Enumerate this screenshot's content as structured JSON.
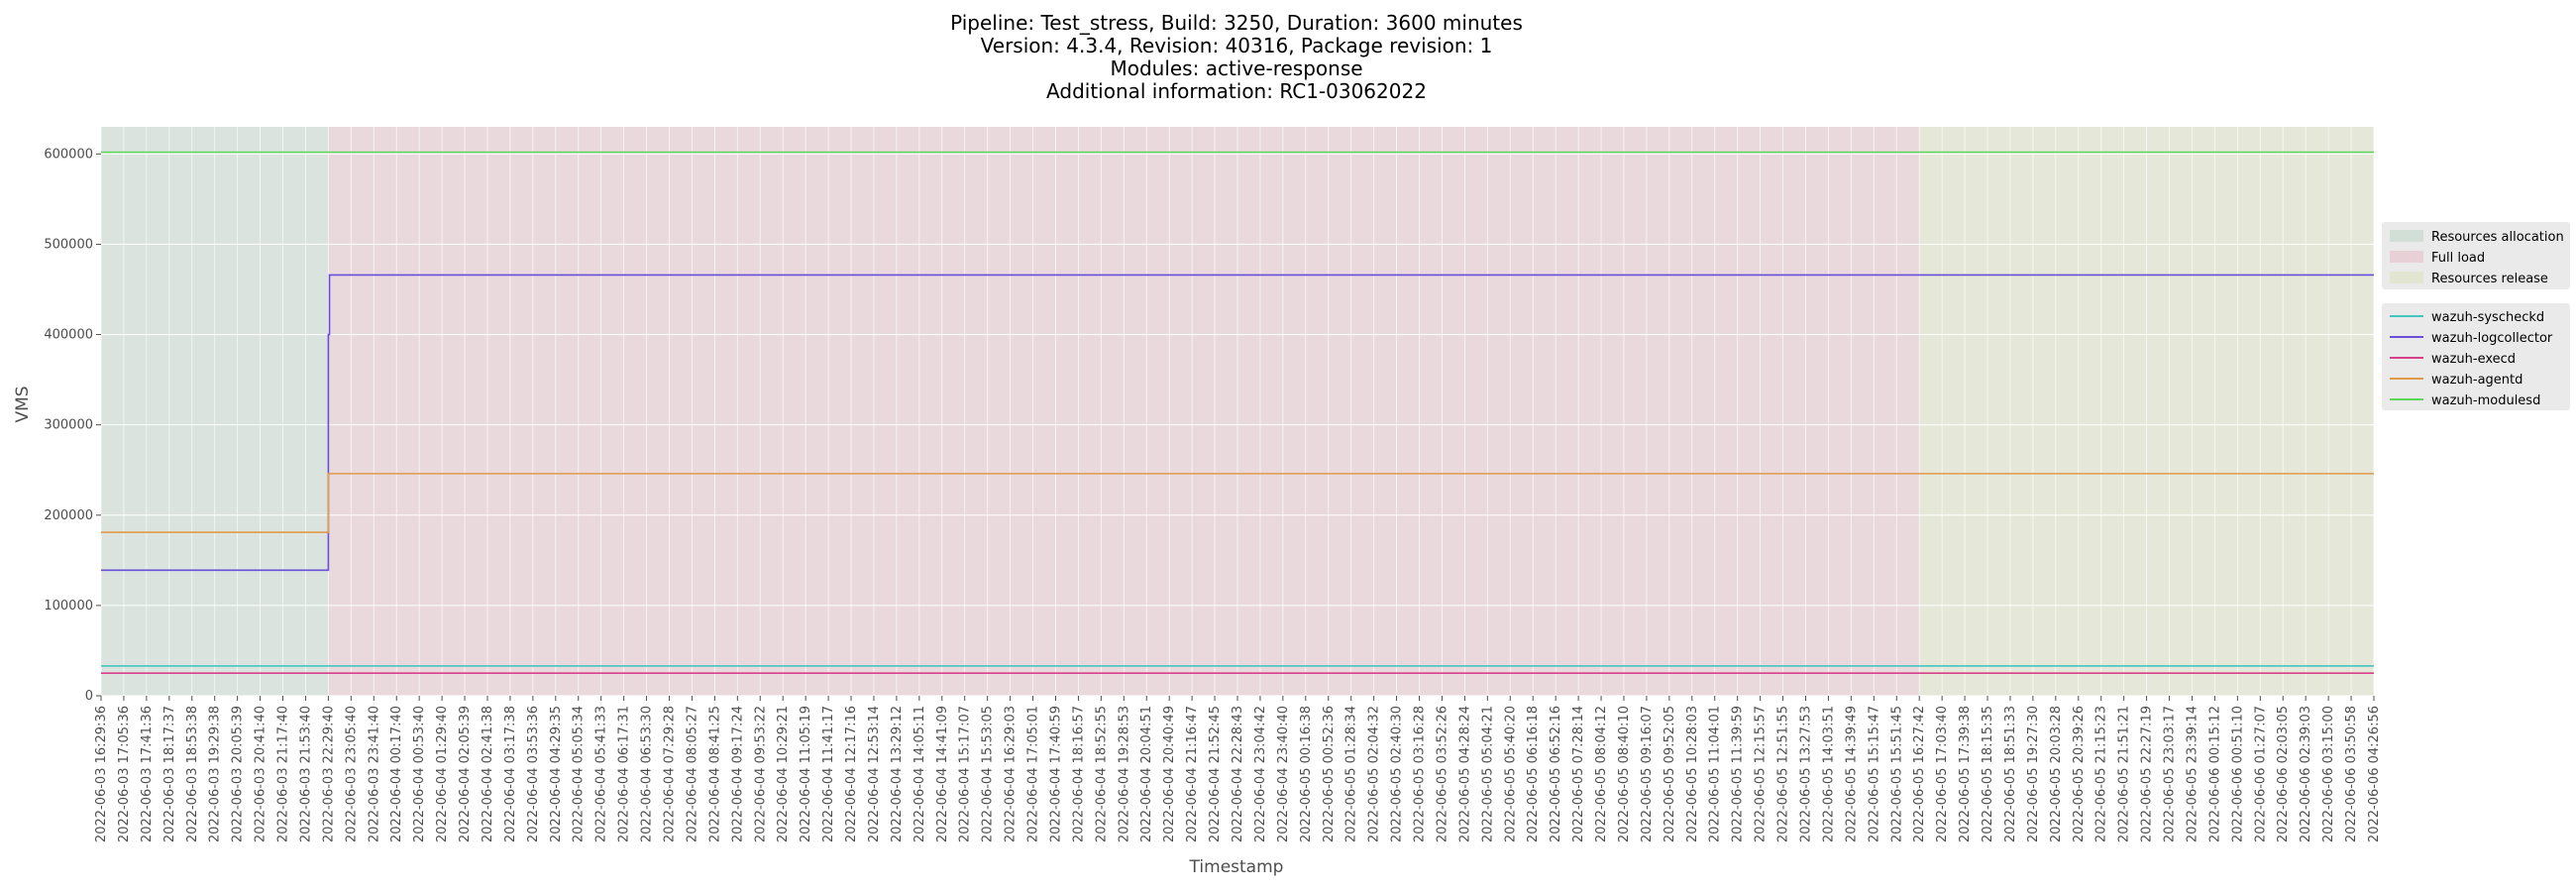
{
  "chart_data": {
    "type": "line",
    "title_lines": [
      "Pipeline: Test_stress, Build: 3250, Duration: 3600 minutes",
      "Version: 4.3.4, Revision: 40316, Package revision: 1",
      "Modules: active-response",
      "Additional information: RC1-03062022"
    ],
    "xlabel": "Timestamp",
    "ylabel": "VMS",
    "ylim": [
      0,
      630000
    ],
    "yticks": [
      0,
      100000,
      200000,
      300000,
      400000,
      500000,
      600000
    ],
    "ytick_labels": [
      "0",
      "100000",
      "200000",
      "300000",
      "400000",
      "500000",
      "600000"
    ],
    "grid": true,
    "legend_placement": "right",
    "x_tick_labels": [
      "2022-06-03 16:29:36",
      "2022-06-03 17:05:36",
      "2022-06-03 17:41:36",
      "2022-06-03 18:17:37",
      "2022-06-03 18:53:38",
      "2022-06-03 19:29:38",
      "2022-06-03 20:05:39",
      "2022-06-03 20:41:40",
      "2022-06-03 21:17:40",
      "2022-06-03 21:53:40",
      "2022-06-03 22:29:40",
      "2022-06-03 23:05:40",
      "2022-06-03 23:41:40",
      "2022-06-04 00:17:40",
      "2022-06-04 00:53:40",
      "2022-06-04 01:29:40",
      "2022-06-04 02:05:39",
      "2022-06-04 02:41:38",
      "2022-06-04 03:17:38",
      "2022-06-04 03:53:36",
      "2022-06-04 04:29:35",
      "2022-06-04 05:05:34",
      "2022-06-04 05:41:33",
      "2022-06-04 06:17:31",
      "2022-06-04 06:53:30",
      "2022-06-04 07:29:28",
      "2022-06-04 08:05:27",
      "2022-06-04 08:41:25",
      "2022-06-04 09:17:24",
      "2022-06-04 09:53:22",
      "2022-06-04 10:29:21",
      "2022-06-04 11:05:19",
      "2022-06-04 11:41:17",
      "2022-06-04 12:17:16",
      "2022-06-04 12:53:14",
      "2022-06-04 13:29:12",
      "2022-06-04 14:05:11",
      "2022-06-04 14:41:09",
      "2022-06-04 15:17:07",
      "2022-06-04 15:53:05",
      "2022-06-04 16:29:03",
      "2022-06-04 17:05:01",
      "2022-06-04 17:40:59",
      "2022-06-04 18:16:57",
      "2022-06-04 18:52:55",
      "2022-06-04 19:28:53",
      "2022-06-04 20:04:51",
      "2022-06-04 20:40:49",
      "2022-06-04 21:16:47",
      "2022-06-04 21:52:45",
      "2022-06-04 22:28:43",
      "2022-06-04 23:04:42",
      "2022-06-04 23:40:40",
      "2022-06-05 00:16:38",
      "2022-06-05 00:52:36",
      "2022-06-05 01:28:34",
      "2022-06-05 02:04:32",
      "2022-06-05 02:40:30",
      "2022-06-05 03:16:28",
      "2022-06-05 03:52:26",
      "2022-06-05 04:28:24",
      "2022-06-05 05:04:21",
      "2022-06-05 05:40:20",
      "2022-06-05 06:16:18",
      "2022-06-05 06:52:16",
      "2022-06-05 07:28:14",
      "2022-06-05 08:04:12",
      "2022-06-05 08:40:10",
      "2022-06-05 09:16:07",
      "2022-06-05 09:52:05",
      "2022-06-05 10:28:03",
      "2022-06-05 11:04:01",
      "2022-06-05 11:39:59",
      "2022-06-05 12:15:57",
      "2022-06-05 12:51:55",
      "2022-06-05 13:27:53",
      "2022-06-05 14:03:51",
      "2022-06-05 14:39:49",
      "2022-06-05 15:15:47",
      "2022-06-05 15:51:45",
      "2022-06-05 16:27:42",
      "2022-06-05 17:03:40",
      "2022-06-05 17:39:38",
      "2022-06-05 18:15:35",
      "2022-06-05 18:51:33",
      "2022-06-05 19:27:30",
      "2022-06-05 20:03:28",
      "2022-06-05 20:39:26",
      "2022-06-05 21:15:23",
      "2022-06-05 21:51:21",
      "2022-06-05 22:27:19",
      "2022-06-05 23:03:17",
      "2022-06-05 23:39:14",
      "2022-06-06 00:15:12",
      "2022-06-06 00:51:10",
      "2022-06-06 01:27:07",
      "2022-06-06 02:03:05",
      "2022-06-06 02:39:03",
      "2022-06-06 03:15:00",
      "2022-06-06 03:50:58",
      "2022-06-06 04:26:56"
    ],
    "phases": [
      {
        "name": "Resources allocation",
        "color": "#b9d4c4",
        "alpha": 0.35,
        "start_index": 0,
        "end_index": 10
      },
      {
        "name": "Full load",
        "color": "#e5b8c1",
        "alpha": 0.35,
        "start_index": 10,
        "end_index": 80
      },
      {
        "name": "Resources release",
        "color": "#d9e2b6",
        "alpha": 0.35,
        "start_index": 80,
        "end_index": 100
      }
    ],
    "series": [
      {
        "name": "wazuh-syscheckd",
        "color": "#44c6c0",
        "points": [
          [
            0,
            33000
          ],
          [
            100,
            33000
          ]
        ]
      },
      {
        "name": "wazuh-logcollector",
        "color": "#6a4fd9",
        "points": [
          [
            0,
            139000
          ],
          [
            10,
            139000
          ],
          [
            10,
            400000
          ],
          [
            10.05,
            400000
          ],
          [
            10.05,
            466000
          ],
          [
            100,
            466000
          ]
        ]
      },
      {
        "name": "wazuh-execd",
        "color": "#d8408a",
        "points": [
          [
            0,
            25000
          ],
          [
            100,
            25000
          ]
        ]
      },
      {
        "name": "wazuh-agentd",
        "color": "#e09a4a",
        "points": [
          [
            0,
            181000
          ],
          [
            10,
            181000
          ],
          [
            10,
            246000
          ],
          [
            100,
            246000
          ]
        ]
      },
      {
        "name": "wazuh-modulesd",
        "color": "#5ed65a",
        "points": [
          [
            0,
            602000
          ],
          [
            100,
            602000
          ]
        ]
      }
    ],
    "legends": {
      "phases": [
        "Resources allocation",
        "Full load",
        "Resources release"
      ],
      "series": [
        "wazuh-syscheckd",
        "wazuh-logcollector",
        "wazuh-execd",
        "wazuh-agentd",
        "wazuh-modulesd"
      ]
    }
  }
}
